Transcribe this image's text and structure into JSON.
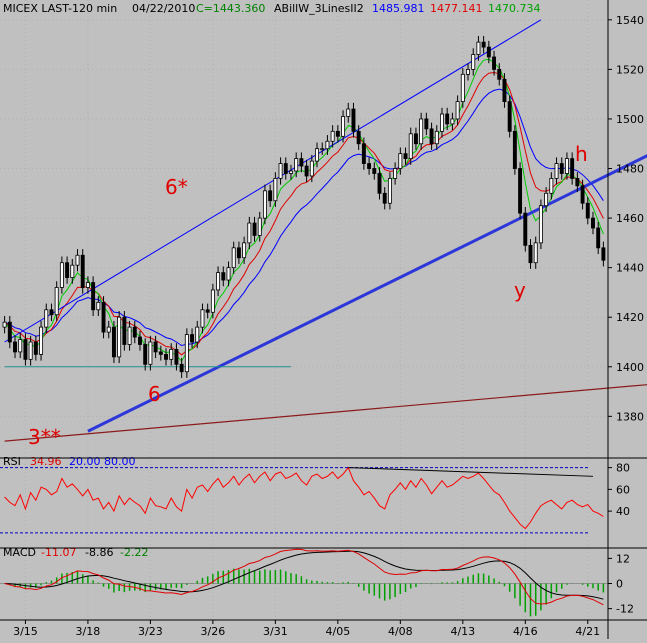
{
  "header": {
    "instrument": "MICEX LAST-120 min",
    "date": "04/22/2010",
    "close_label": "C=1443.360",
    "indicator": "ABillW_3LinesII2",
    "v1": "1485.981",
    "v2": "1477.141",
    "v3": "1470.734"
  },
  "rsi_header": {
    "name": "RSI",
    "value": "34.96",
    "lower": "20.00",
    "upper": "80.00"
  },
  "macd_header": {
    "name": "MACD",
    "v1": "-11.07",
    "v2": "-8.86",
    "v3": "-2.22"
  },
  "annotations": {
    "a1": "6*",
    "a2": "6",
    "a3": "3**",
    "a4": "y",
    "a5": "h"
  },
  "colors": {
    "background": "#c0c0c0",
    "up_candle": "#ffffff",
    "down_candle": "#000000",
    "line_green": "#00cc00",
    "line_red": "#e00000",
    "line_blue": "#0000ff",
    "channel": "#2d37d9",
    "trend_brown": "#8b1a1a",
    "support_teal": "#1f8f8f",
    "rsi_line": "#ff0000"
  },
  "chart_data": [
    {
      "type": "candlestick",
      "panel": "price",
      "ylim": [
        1364,
        1548
      ],
      "yticks": [
        1380,
        1400,
        1420,
        1440,
        1460,
        1480,
        1500,
        1520,
        1540
      ],
      "x_labels": [
        "3/15",
        "3/18",
        "3/23",
        "3/26",
        "3/31",
        "4/05",
        "4/08",
        "4/13",
        "4/16",
        "4/21"
      ],
      "close": [
        1418,
        1410,
        1406,
        1411,
        1403,
        1410,
        1405,
        1416,
        1423,
        1421,
        1432,
        1442,
        1436,
        1441,
        1445,
        1432,
        1434,
        1423,
        1426,
        1414,
        1416,
        1404,
        1420,
        1409,
        1416,
        1412,
        1409,
        1401,
        1410,
        1406,
        1405,
        1403,
        1407,
        1401,
        1398,
        1413,
        1410,
        1416,
        1423,
        1422,
        1431,
        1438,
        1435,
        1440,
        1448,
        1444,
        1450,
        1458,
        1453,
        1460,
        1471,
        1467,
        1476,
        1482,
        1478,
        1479,
        1484,
        1481,
        1477,
        1483,
        1488,
        1488,
        1491,
        1495,
        1493,
        1501,
        1504,
        1495,
        1490,
        1482,
        1480,
        1478,
        1470,
        1466,
        1476,
        1480,
        1486,
        1484,
        1494,
        1490,
        1500,
        1496,
        1490,
        1495,
        1502,
        1498,
        1500,
        1507,
        1518,
        1520,
        1526,
        1531,
        1529,
        1525,
        1520,
        1516,
        1507,
        1495,
        1480,
        1462,
        1449,
        1442,
        1450,
        1465,
        1470,
        1476,
        1482,
        1478,
        1484,
        1476,
        1473,
        1466,
        1460,
        1456,
        1448,
        1443
      ],
      "channel_lines": [
        {
          "name": "6*",
          "from": [
            0,
            1410
          ],
          "to": [
            103,
            1540
          ]
        },
        {
          "name": "6",
          "from": [
            16,
            1374
          ],
          "to": [
            130,
            1492
          ]
        },
        {
          "name": "3**",
          "from": [
            0,
            1370
          ],
          "to": [
            130,
            1394
          ]
        },
        {
          "name": "support",
          "from": [
            0,
            1400
          ],
          "to": [
            55,
            1400
          ]
        }
      ]
    },
    {
      "type": "line",
      "panel": "rsi",
      "title": "RSI",
      "ylim": [
        7,
        87
      ],
      "yticks": [
        40,
        60,
        80
      ],
      "levels": [
        20,
        80
      ],
      "series": [
        {
          "name": "RSI",
          "values": [
            53,
            48,
            45,
            55,
            42,
            57,
            50,
            62,
            60,
            55,
            58,
            70,
            62,
            65,
            60,
            54,
            60,
            50,
            52,
            42,
            48,
            40,
            54,
            46,
            52,
            48,
            45,
            38,
            52,
            45,
            44,
            42,
            52,
            44,
            40,
            60,
            52,
            62,
            64,
            58,
            65,
            70,
            62,
            66,
            72,
            64,
            70,
            74,
            66,
            72,
            76,
            68,
            74,
            76,
            70,
            72,
            75,
            68,
            64,
            72,
            74,
            70,
            72,
            76,
            70,
            74,
            80,
            68,
            62,
            55,
            58,
            52,
            45,
            42,
            55,
            60,
            66,
            60,
            68,
            62,
            70,
            64,
            56,
            62,
            68,
            62,
            64,
            68,
            72,
            70,
            72,
            75,
            70,
            64,
            58,
            55,
            48,
            40,
            34,
            28,
            24,
            30,
            38,
            45,
            48,
            50,
            46,
            42,
            48,
            50,
            46,
            44,
            46,
            40,
            38,
            35
          ]
        }
      ]
    },
    {
      "type": "line",
      "panel": "macd",
      "title": "MACD",
      "ylim": [
        -16,
        16
      ],
      "yticks": [
        -12,
        0,
        12
      ]
    }
  ]
}
